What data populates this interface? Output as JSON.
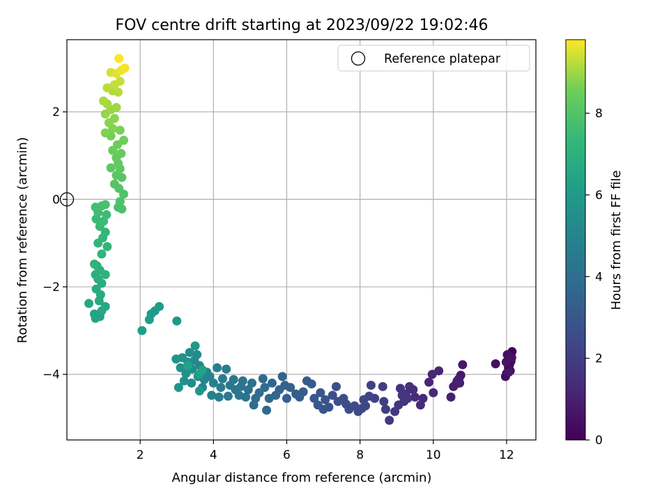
{
  "chart_data": {
    "type": "scatter",
    "title": "FOV centre drift starting at 2023/09/22 19:02:46",
    "xlabel": "Angular distance from reference (arcmin)",
    "ylabel": "Rotation from reference (arcmin)",
    "xlim": [
      0,
      12.8
    ],
    "ylim": [
      -5.5,
      3.65
    ],
    "xticks": [
      "2",
      "4",
      "6",
      "8",
      "10",
      "12"
    ],
    "yticks": [
      "−4",
      "−2",
      "0",
      "2"
    ],
    "grid": true,
    "legend": {
      "placement": "top-right",
      "entries": [
        "Reference platepar"
      ]
    },
    "reference_point": {
      "x": 0.0,
      "y": 0.0
    },
    "colorbar": {
      "label": "Hours from first FF file",
      "colormap": "viridis",
      "range": [
        0,
        9.8
      ],
      "ticks": [
        "0",
        "2",
        "4",
        "6",
        "8"
      ]
    },
    "series": [
      {
        "color_by": "hours",
        "points": [
          [
            12.15,
            -3.48,
            0.0
          ],
          [
            12.1,
            -3.55,
            0.05
          ],
          [
            12.05,
            -3.62,
            0.1
          ],
          [
            12.12,
            -3.7,
            0.15
          ],
          [
            12.08,
            -3.78,
            0.2
          ],
          [
            12.05,
            -3.85,
            0.25
          ],
          [
            12.1,
            -3.92,
            0.3
          ],
          [
            12.0,
            -3.98,
            0.35
          ],
          [
            11.97,
            -4.05,
            0.4
          ],
          [
            11.7,
            -3.76,
            0.45
          ],
          [
            12.02,
            -3.55,
            0.5
          ],
          [
            12.14,
            -3.62,
            0.55
          ],
          [
            11.99,
            -3.72,
            0.6
          ],
          [
            12.06,
            -3.95,
            0.65
          ],
          [
            10.8,
            -3.78,
            0.7
          ],
          [
            10.75,
            -4.02,
            0.75
          ],
          [
            10.7,
            -4.1,
            0.8
          ],
          [
            10.62,
            -4.22,
            0.85
          ],
          [
            10.55,
            -4.28,
            0.9
          ],
          [
            10.72,
            -4.2,
            0.95
          ],
          [
            10.48,
            -4.52,
            1.0
          ],
          [
            10.65,
            -4.15,
            1.05
          ],
          [
            10.15,
            -3.92,
            1.1
          ],
          [
            9.97,
            -4.0,
            1.15
          ],
          [
            9.88,
            -4.18,
            1.2
          ],
          [
            10.0,
            -4.42,
            1.25
          ],
          [
            9.72,
            -4.55,
            1.3
          ],
          [
            9.65,
            -4.7,
            1.35
          ],
          [
            9.5,
            -4.52,
            1.4
          ],
          [
            9.45,
            -4.35,
            1.45
          ],
          [
            9.35,
            -4.28,
            1.5
          ],
          [
            9.25,
            -4.45,
            1.55
          ],
          [
            9.1,
            -4.32,
            1.6
          ],
          [
            9.2,
            -4.62,
            1.65
          ],
          [
            9.05,
            -4.7,
            1.7
          ],
          [
            9.3,
            -4.55,
            1.75
          ],
          [
            9.15,
            -4.48,
            1.8
          ],
          [
            8.95,
            -4.85,
            1.85
          ],
          [
            8.8,
            -5.05,
            1.9
          ],
          [
            8.7,
            -4.8,
            1.95
          ],
          [
            8.65,
            -4.62,
            2.0
          ],
          [
            8.62,
            -4.28,
            2.05
          ],
          [
            8.4,
            -4.55,
            2.1
          ],
          [
            8.3,
            -4.25,
            2.15
          ],
          [
            8.25,
            -4.5,
            2.2
          ],
          [
            8.15,
            -4.72,
            2.25
          ],
          [
            8.1,
            -4.58,
            2.3
          ],
          [
            8.05,
            -4.78,
            2.35
          ],
          [
            7.95,
            -4.85,
            2.4
          ],
          [
            7.85,
            -4.72,
            2.45
          ],
          [
            7.7,
            -4.8,
            2.5
          ],
          [
            7.62,
            -4.68,
            2.55
          ],
          [
            7.55,
            -4.55,
            2.6
          ],
          [
            7.4,
            -4.62,
            2.65
          ],
          [
            7.35,
            -4.28,
            2.7
          ],
          [
            7.25,
            -4.48,
            2.75
          ],
          [
            7.15,
            -4.75,
            2.8
          ],
          [
            7.05,
            -4.58,
            2.85
          ],
          [
            7.0,
            -4.8,
            2.9
          ],
          [
            6.92,
            -4.42,
            2.95
          ],
          [
            6.85,
            -4.7,
            3.0
          ],
          [
            6.75,
            -4.55,
            3.05
          ],
          [
            6.68,
            -4.22,
            3.1
          ],
          [
            6.55,
            -4.15,
            3.15
          ],
          [
            6.45,
            -4.4,
            3.2
          ],
          [
            6.35,
            -4.52,
            3.25
          ],
          [
            6.25,
            -4.45,
            3.3
          ],
          [
            6.1,
            -4.3,
            3.35
          ],
          [
            6.0,
            -4.55,
            3.4
          ],
          [
            5.95,
            -4.25,
            3.45
          ],
          [
            5.88,
            -4.05,
            3.5
          ],
          [
            5.8,
            -4.35,
            3.55
          ],
          [
            5.7,
            -4.48,
            3.6
          ],
          [
            5.6,
            -4.2,
            3.65
          ],
          [
            5.52,
            -4.55,
            3.7
          ],
          [
            5.45,
            -4.82,
            3.75
          ],
          [
            5.4,
            -4.3,
            3.8
          ],
          [
            5.35,
            -4.1,
            3.85
          ],
          [
            5.25,
            -4.42,
            3.9
          ],
          [
            5.15,
            -4.55,
            3.95
          ],
          [
            5.1,
            -4.7,
            4.0
          ],
          [
            5.05,
            -4.2,
            4.05
          ],
          [
            4.95,
            -4.35,
            4.1
          ],
          [
            4.88,
            -4.52,
            4.15
          ],
          [
            4.8,
            -4.15,
            4.2
          ],
          [
            4.75,
            -4.28,
            4.25
          ],
          [
            4.7,
            -4.48,
            4.3
          ],
          [
            4.6,
            -4.35,
            4.35
          ],
          [
            4.55,
            -4.12,
            4.4
          ],
          [
            4.45,
            -4.25,
            4.45
          ],
          [
            4.4,
            -4.5,
            4.5
          ],
          [
            4.35,
            -3.88,
            4.55
          ],
          [
            4.25,
            -4.1,
            4.6
          ],
          [
            4.2,
            -4.3,
            4.65
          ],
          [
            4.15,
            -4.52,
            4.7
          ],
          [
            4.1,
            -3.85,
            4.75
          ],
          [
            4.0,
            -4.2,
            4.8
          ],
          [
            3.95,
            -4.48,
            4.85
          ],
          [
            3.9,
            -4.05,
            4.9
          ],
          [
            3.82,
            -3.95,
            4.95
          ],
          [
            3.75,
            -4.12,
            5.0
          ],
          [
            3.7,
            -4.3,
            5.05
          ],
          [
            3.62,
            -3.8,
            5.1
          ],
          [
            3.58,
            -4.05,
            5.15
          ],
          [
            3.55,
            -3.55,
            5.2
          ],
          [
            3.48,
            -3.68,
            5.25
          ],
          [
            3.42,
            -3.88,
            5.3
          ],
          [
            3.4,
            -4.2,
            5.35
          ],
          [
            3.35,
            -3.5,
            5.4
          ],
          [
            3.3,
            -3.72,
            5.45
          ],
          [
            3.25,
            -3.98,
            5.5
          ],
          [
            3.2,
            -4.15,
            5.55
          ],
          [
            3.15,
            -3.62,
            5.6
          ],
          [
            3.1,
            -3.85,
            5.65
          ],
          [
            3.05,
            -4.3,
            5.7
          ],
          [
            2.98,
            -3.65,
            5.75
          ],
          [
            3.62,
            -4.38,
            5.8
          ],
          [
            3.5,
            -3.35,
            5.85
          ],
          [
            3.0,
            -2.78,
            5.9
          ],
          [
            2.52,
            -2.45,
            5.95
          ],
          [
            2.4,
            -2.55,
            6.0
          ],
          [
            2.3,
            -2.62,
            6.05
          ],
          [
            2.25,
            -2.75,
            6.1
          ],
          [
            2.05,
            -3.0,
            6.15
          ],
          [
            3.6,
            -4.0,
            6.2
          ],
          [
            3.7,
            -3.9,
            6.25
          ],
          [
            3.3,
            -3.8,
            6.3
          ],
          [
            0.9,
            -2.68,
            6.35
          ],
          [
            0.78,
            -2.72,
            6.4
          ],
          [
            0.75,
            -2.62,
            6.45
          ],
          [
            0.6,
            -2.38,
            6.5
          ],
          [
            0.95,
            -2.55,
            6.55
          ],
          [
            1.05,
            -2.45,
            6.6
          ],
          [
            0.88,
            -2.32,
            6.65
          ],
          [
            0.92,
            -2.18,
            6.7
          ],
          [
            0.8,
            -2.05,
            6.75
          ],
          [
            0.95,
            -1.92,
            6.8
          ],
          [
            0.85,
            -1.82,
            6.85
          ],
          [
            0.78,
            -1.72,
            6.9
          ],
          [
            0.9,
            -1.62,
            6.95
          ],
          [
            0.82,
            -1.52,
            7.0
          ],
          [
            1.05,
            -1.72,
            7.05
          ],
          [
            0.75,
            -1.48,
            7.1
          ],
          [
            0.95,
            -1.25,
            7.15
          ],
          [
            1.1,
            -1.08,
            7.2
          ],
          [
            0.85,
            -1.0,
            7.25
          ],
          [
            0.98,
            -0.88,
            7.3
          ],
          [
            1.05,
            -0.75,
            7.35
          ],
          [
            0.9,
            -0.62,
            7.4
          ],
          [
            0.8,
            -0.45,
            7.45
          ],
          [
            1.0,
            -0.5,
            7.5
          ],
          [
            1.08,
            -0.35,
            7.55
          ],
          [
            0.85,
            -0.3,
            7.6
          ],
          [
            0.78,
            -0.18,
            7.65
          ],
          [
            0.95,
            -0.15,
            7.7
          ],
          [
            1.05,
            -0.12,
            7.75
          ],
          [
            1.4,
            -0.18,
            7.8
          ],
          [
            1.5,
            -0.22,
            7.85
          ],
          [
            1.45,
            -0.05,
            7.9
          ],
          [
            1.55,
            0.12,
            7.95
          ],
          [
            1.42,
            0.25,
            8.0
          ],
          [
            1.3,
            0.35,
            8.05
          ],
          [
            1.5,
            0.5,
            8.1
          ],
          [
            1.35,
            0.55,
            8.15
          ],
          [
            1.45,
            0.7,
            8.2
          ],
          [
            1.2,
            0.72,
            8.25
          ],
          [
            1.4,
            0.82,
            8.3
          ],
          [
            1.35,
            0.95,
            8.35
          ],
          [
            1.48,
            1.05,
            8.4
          ],
          [
            1.25,
            1.12,
            8.45
          ],
          [
            1.38,
            1.25,
            8.5
          ],
          [
            1.55,
            1.35,
            8.55
          ],
          [
            1.2,
            1.45,
            8.6
          ],
          [
            1.45,
            1.58,
            8.65
          ],
          [
            1.05,
            1.52,
            8.7
          ],
          [
            1.25,
            1.62,
            8.75
          ],
          [
            1.15,
            1.75,
            8.8
          ],
          [
            1.3,
            1.85,
            8.85
          ],
          [
            1.05,
            1.95,
            8.9
          ],
          [
            1.2,
            2.05,
            8.95
          ],
          [
            1.35,
            2.1,
            9.0
          ],
          [
            1.1,
            2.18,
            9.05
          ],
          [
            1.0,
            2.25,
            9.1
          ],
          [
            1.25,
            2.48,
            9.15
          ],
          [
            1.4,
            2.45,
            9.2
          ],
          [
            1.1,
            2.55,
            9.25
          ],
          [
            1.3,
            2.62,
            9.3
          ],
          [
            1.45,
            2.7,
            9.35
          ],
          [
            1.2,
            2.9,
            9.45
          ],
          [
            1.35,
            2.88,
            9.55
          ],
          [
            1.48,
            2.95,
            9.65
          ],
          [
            1.58,
            3.0,
            9.72
          ],
          [
            1.42,
            3.22,
            9.8
          ]
        ]
      }
    ]
  }
}
